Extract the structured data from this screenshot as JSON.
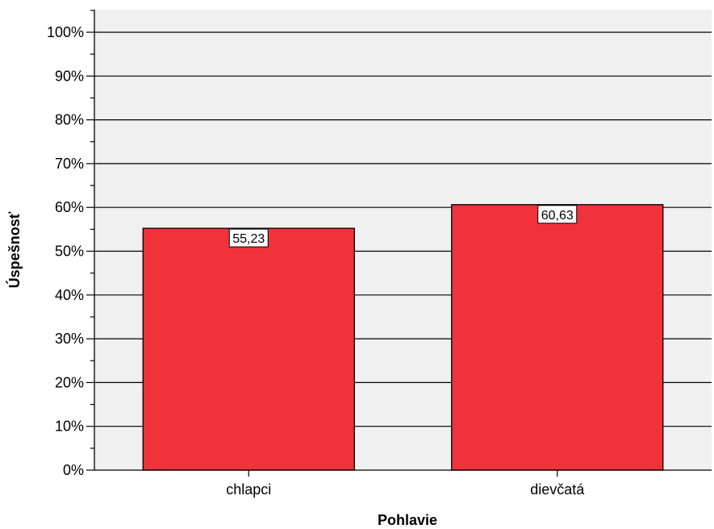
{
  "chart_data": {
    "type": "bar",
    "categories": [
      "chlapci",
      "dievčatá"
    ],
    "values": [
      55.23,
      60.63
    ],
    "data_labels": [
      "55,23",
      "60,63"
    ],
    "xlabel": "Pohlavie",
    "ylabel": "Úspešnosť",
    "ylim": [
      0,
      105
    ],
    "yticks": [
      0,
      10,
      20,
      30,
      40,
      50,
      60,
      70,
      80,
      90,
      100
    ],
    "ytick_labels": [
      "0%",
      "10%",
      "20%",
      "30%",
      "40%",
      "50%",
      "60%",
      "70%",
      "80%",
      "90%",
      "100%"
    ],
    "grid": true,
    "legend": false,
    "colors": {
      "bar": "#f0323a",
      "plot_background": "#f0f0f0",
      "gridline": "#000000"
    }
  }
}
